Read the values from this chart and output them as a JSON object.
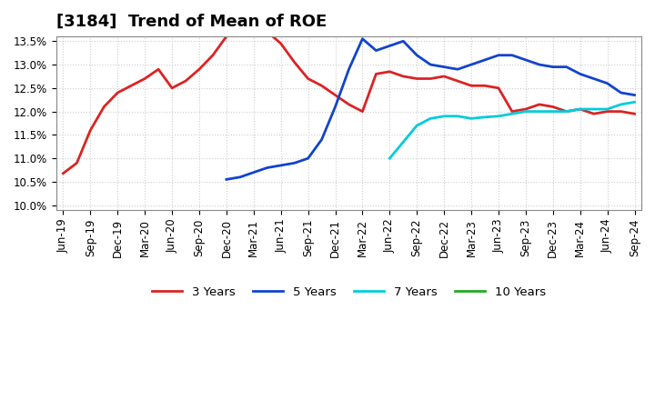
{
  "title": "[3184]  Trend of Mean of ROE",
  "ylim": [
    0.1,
    0.135
  ],
  "yticks": [
    0.1,
    0.105,
    0.11,
    0.115,
    0.12,
    0.125,
    0.13,
    0.135
  ],
  "ytick_labels": [
    "10.0%",
    "10.5%",
    "11.0%",
    "11.5%",
    "12.0%",
    "12.5%",
    "13.0%",
    "13.5%"
  ],
  "xlabel": "",
  "background_color": "#ffffff",
  "grid_color": "#cccccc",
  "series": {
    "3 Years": {
      "color": "#dd2222",
      "x": [
        0,
        1,
        2,
        3,
        4,
        5,
        6,
        7,
        8,
        9,
        10,
        11,
        12,
        13,
        14,
        15,
        16,
        17,
        18,
        19,
        20,
        21,
        22,
        23,
        24,
        25,
        26,
        27,
        28,
        29,
        30,
        31,
        32,
        33,
        34,
        35,
        36,
        37,
        38,
        39,
        40,
        41,
        42
      ],
      "y": [
        0.1068,
        0.109,
        0.116,
        0.121,
        0.124,
        0.1255,
        0.127,
        0.129,
        0.125,
        0.1265,
        0.129,
        0.132,
        0.136,
        0.1375,
        0.1375,
        0.137,
        0.1345,
        0.1305,
        0.127,
        0.1255,
        0.1235,
        0.1215,
        0.12,
        0.128,
        0.1285,
        0.1275,
        0.127,
        0.127,
        0.1275,
        0.1265,
        0.1255,
        0.1255,
        0.125,
        0.12,
        0.1205,
        0.1215,
        0.121,
        0.12,
        0.1205,
        0.1195,
        0.12,
        0.12,
        0.1195
      ]
    },
    "5 Years": {
      "color": "#1144cc",
      "x": [
        0,
        1,
        2,
        3,
        4,
        5,
        6,
        7,
        8,
        9,
        10,
        11,
        12,
        13,
        14,
        15,
        16,
        17,
        18,
        19,
        20,
        21,
        22,
        23,
        24,
        25,
        26,
        27,
        28,
        29,
        30,
        31,
        32,
        33,
        34,
        35,
        36,
        37,
        38,
        39,
        40,
        41,
        42
      ],
      "y": [
        null,
        null,
        null,
        null,
        null,
        null,
        null,
        null,
        null,
        null,
        null,
        null,
        0.1055,
        0.106,
        0.107,
        0.108,
        0.1085,
        0.109,
        0.11,
        0.114,
        0.121,
        0.129,
        0.1355,
        0.133,
        0.134,
        0.135,
        0.132,
        0.13,
        0.1295,
        0.129,
        0.13,
        0.131,
        0.132,
        0.132,
        0.131,
        0.13,
        0.1295,
        0.1295,
        0.128,
        0.127,
        0.126,
        0.124,
        0.1235
      ]
    },
    "7 Years": {
      "color": "#00ccdd",
      "x": [
        0,
        1,
        2,
        3,
        4,
        5,
        6,
        7,
        8,
        9,
        10,
        11,
        12,
        13,
        14,
        15,
        16,
        17,
        18,
        19,
        20,
        21,
        22,
        23,
        24,
        25,
        26,
        27,
        28,
        29,
        30,
        31,
        32,
        33,
        34,
        35,
        36,
        37,
        38,
        39,
        40,
        41,
        42
      ],
      "y": [
        null,
        null,
        null,
        null,
        null,
        null,
        null,
        null,
        null,
        null,
        null,
        null,
        null,
        null,
        null,
        null,
        null,
        null,
        null,
        null,
        null,
        null,
        null,
        null,
        0.11,
        0.1135,
        0.117,
        0.1185,
        0.119,
        0.119,
        0.1185,
        0.1188,
        0.119,
        0.1195,
        0.12,
        0.12,
        0.12,
        0.12,
        0.1205,
        0.1205,
        0.1205,
        0.1215,
        0.122
      ]
    },
    "10 Years": {
      "color": "#22aa22",
      "x": [],
      "y": []
    }
  },
  "xtick_labels": [
    "Jun-19",
    "Sep-19",
    "Dec-19",
    "Mar-20",
    "Jun-20",
    "Sep-20",
    "Dec-20",
    "Mar-21",
    "Jun-21",
    "Sep-21",
    "Dec-21",
    "Mar-22",
    "Jun-22",
    "Sep-22",
    "Dec-22",
    "Mar-23",
    "Jun-23",
    "Sep-23",
    "Dec-23",
    "Mar-24",
    "Jun-24",
    "Sep-24"
  ]
}
